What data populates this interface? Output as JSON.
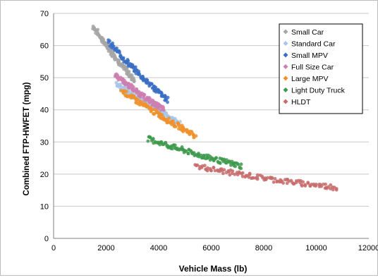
{
  "chart_data": {
    "type": "scatter",
    "title": "",
    "xlabel": "Vehicle Mass (lb)",
    "ylabel": "Combined FTP-HWFET (mpg)",
    "xlim": [
      0,
      12000
    ],
    "ylim": [
      0,
      70
    ],
    "x_ticks": [
      "0",
      "2000",
      "4000",
      "6000",
      "8000",
      "10000",
      "12000"
    ],
    "y_ticks": [
      "0",
      "10",
      "20",
      "30",
      "40",
      "50",
      "60",
      "70"
    ],
    "grid": "horizontal",
    "legend_position": "top-right",
    "series": [
      {
        "name": "Small Car",
        "color": "#a6a6a6",
        "start": [
          1500,
          66
        ],
        "end": [
          3100,
          49
        ],
        "curve": 0.6
      },
      {
        "name": "Standard Car",
        "color": "#a9c4e8",
        "start": [
          2400,
          48
        ],
        "end": [
          4800,
          36
        ],
        "curve": 0.5
      },
      {
        "name": "Small MPV",
        "color": "#3a6fc4",
        "start": [
          2100,
          61
        ],
        "end": [
          4350,
          43
        ],
        "curve": 0.6
      },
      {
        "name": "Full Size Car",
        "color": "#cc7fb0",
        "start": [
          2350,
          51
        ],
        "end": [
          4200,
          40
        ],
        "curve": 0.5
      },
      {
        "name": "Large MPV",
        "color": "#f0902a",
        "start": [
          2600,
          46
        ],
        "end": [
          5400,
          32
        ],
        "curve": 0.5
      },
      {
        "name": "Light Duty Truck",
        "color": "#3e9a4e",
        "start": [
          3600,
          31
        ],
        "end": [
          7150,
          22.5
        ],
        "curve": 0.4
      },
      {
        "name": "HLDT",
        "color": "#c76a6a",
        "start": [
          5400,
          22.5
        ],
        "end": [
          10800,
          15.8
        ],
        "curve": 0.5
      }
    ]
  }
}
